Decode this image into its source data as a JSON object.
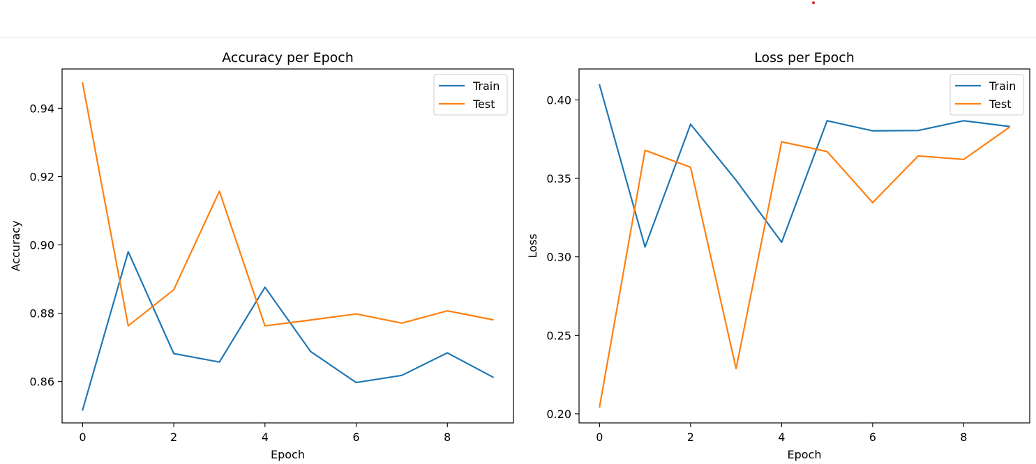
{
  "chart_data": [
    {
      "type": "line",
      "title": "Accuracy per Epoch",
      "xlabel": "Epoch",
      "ylabel": "Accuracy",
      "x": [
        0,
        1,
        2,
        3,
        4,
        5,
        6,
        7,
        8,
        9
      ],
      "xlim": [
        -0.45,
        9.45
      ],
      "ylim": [
        0.8479,
        0.9515
      ],
      "xticks": [
        0,
        2,
        4,
        6,
        8
      ],
      "xtick_labels": [
        "0",
        "2",
        "4",
        "6",
        "8"
      ],
      "yticks": [
        0.86,
        0.88,
        0.9,
        0.92,
        0.94
      ],
      "ytick_labels": [
        "0.86",
        "0.88",
        "0.90",
        "0.92",
        "0.94"
      ],
      "legend_position": "upper right",
      "grid": false,
      "series": [
        {
          "name": "Train",
          "color": "#1f77b4",
          "values": [
            0.8517,
            0.898,
            0.8682,
            0.8657,
            0.8876,
            0.8688,
            0.8597,
            0.8618,
            0.8684,
            0.8613
          ]
        },
        {
          "name": "Test",
          "color": "#ff7f0e",
          "values": [
            0.9474,
            0.8763,
            0.8869,
            0.9157,
            0.8763,
            0.878,
            0.8798,
            0.8771,
            0.8807,
            0.8781
          ]
        }
      ]
    },
    {
      "type": "line",
      "title": "Loss per Epoch",
      "xlabel": "Epoch",
      "ylabel": "Loss",
      "x": [
        0,
        1,
        2,
        3,
        4,
        5,
        6,
        7,
        8,
        9
      ],
      "xlim": [
        -0.45,
        9.45
      ],
      "ylim": [
        0.1942,
        0.4197
      ],
      "xticks": [
        0,
        2,
        4,
        6,
        8
      ],
      "xtick_labels": [
        "0",
        "2",
        "4",
        "6",
        "8"
      ],
      "yticks": [
        0.2,
        0.25,
        0.3,
        0.35,
        0.4
      ],
      "ytick_labels": [
        "0.20",
        "0.25",
        "0.30",
        "0.35",
        "0.40"
      ],
      "legend_position": "upper right",
      "grid": false,
      "series": [
        {
          "name": "Train",
          "color": "#1f77b4",
          "values": [
            0.4095,
            0.3063,
            0.3845,
            0.3488,
            0.3093,
            0.3867,
            0.3803,
            0.3805,
            0.3867,
            0.3831
          ]
        },
        {
          "name": "Test",
          "color": "#ff7f0e",
          "values": [
            0.2044,
            0.3679,
            0.357,
            0.2288,
            0.3733,
            0.3671,
            0.3345,
            0.3643,
            0.3621,
            0.3825
          ]
        }
      ]
    }
  ]
}
